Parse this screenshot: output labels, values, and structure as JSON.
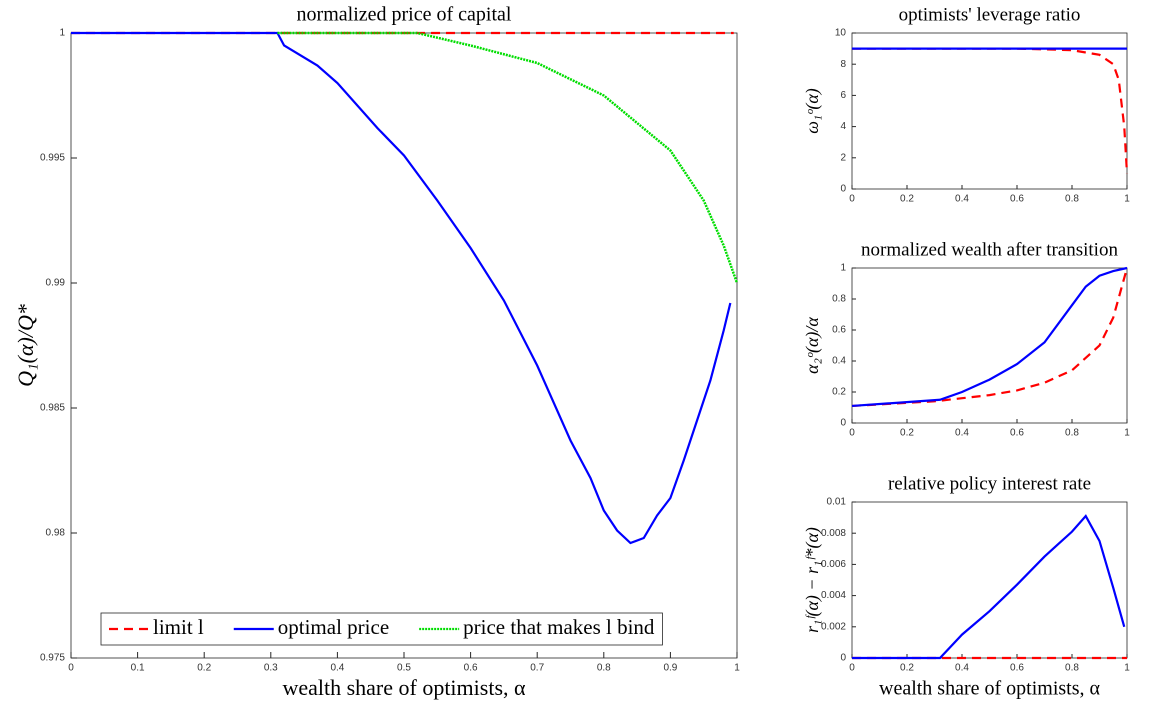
{
  "chart_data": [
    {
      "type": "line",
      "title": "normalized price of capital",
      "xlabel": "wealth share of optimists, α",
      "ylabel": "Q₁(α)/Q*",
      "xlim": [
        0,
        1
      ],
      "ylim": [
        0.975,
        1
      ],
      "xticks": [
        0,
        0.1,
        0.2,
        0.3,
        0.4,
        0.5,
        0.6,
        0.7,
        0.8,
        0.9,
        1
      ],
      "yticks": [
        0.975,
        0.98,
        0.985,
        0.99,
        0.995,
        1
      ],
      "legend": "lower center",
      "series": [
        {
          "name": "limit l",
          "color": "#ff0000",
          "style": "dashed",
          "x": [
            0,
            0.995
          ],
          "values": [
            1,
            1
          ]
        },
        {
          "name": "optimal price",
          "color": "#0000ff",
          "style": "solid",
          "x": [
            0,
            0.31,
            0.32,
            0.37,
            0.4,
            0.46,
            0.5,
            0.55,
            0.6,
            0.65,
            0.7,
            0.75,
            0.78,
            0.8,
            0.82,
            0.84,
            0.86,
            0.88,
            0.9,
            0.92,
            0.94,
            0.96,
            0.98,
            0.99
          ],
          "values": [
            1,
            1,
            0.9995,
            0.9987,
            0.998,
            0.9962,
            0.9951,
            0.9933,
            0.9914,
            0.9893,
            0.9867,
            0.9837,
            0.9822,
            0.9809,
            0.9801,
            0.9796,
            0.9798,
            0.9807,
            0.9814,
            0.9829,
            0.9845,
            0.9861,
            0.9881,
            0.9892
          ]
        },
        {
          "name": "price that makes l bind",
          "color": "#00dd00",
          "style": "dotted",
          "x": [
            0.31,
            0.4,
            0.52,
            0.6,
            0.7,
            0.8,
            0.9,
            0.95,
            0.98,
            1
          ],
          "values": [
            1,
            1,
            1,
            0.9995,
            0.9988,
            0.9975,
            0.9953,
            0.9933,
            0.9915,
            0.99
          ]
        }
      ]
    },
    {
      "type": "line",
      "title": "optimists' leverage ratio",
      "ylabel": "ω₁ᵒ(α)",
      "xlim": [
        0,
        1
      ],
      "ylim": [
        0,
        10
      ],
      "xticks": [
        0,
        0.2,
        0.4,
        0.6,
        0.8,
        1
      ],
      "yticks": [
        0,
        2,
        4,
        6,
        8,
        10
      ],
      "series": [
        {
          "color": "#ff0000",
          "style": "dashed",
          "x": [
            0,
            0.6,
            0.8,
            0.9,
            0.95,
            0.97,
            0.99,
            1
          ],
          "values": [
            9,
            9,
            8.9,
            8.6,
            8,
            7,
            4,
            1
          ]
        },
        {
          "color": "#0000ff",
          "style": "solid",
          "x": [
            0,
            1
          ],
          "values": [
            9,
            9
          ]
        }
      ]
    },
    {
      "type": "line",
      "title": "normalized wealth after transition",
      "ylabel": "α₂ᵒ(α)/α",
      "xlim": [
        0,
        1
      ],
      "ylim": [
        0,
        1
      ],
      "xticks": [
        0,
        0.2,
        0.4,
        0.6,
        0.8,
        1
      ],
      "yticks": [
        0,
        0.2,
        0.4,
        0.6,
        0.8,
        1
      ],
      "series": [
        {
          "color": "#ff0000",
          "style": "dashed",
          "x": [
            0,
            0.3,
            0.4,
            0.5,
            0.6,
            0.7,
            0.8,
            0.9,
            0.95,
            1
          ],
          "values": [
            0.11,
            0.14,
            0.16,
            0.18,
            0.21,
            0.26,
            0.34,
            0.5,
            0.68,
            1
          ]
        },
        {
          "color": "#0000ff",
          "style": "solid",
          "x": [
            0,
            0.32,
            0.4,
            0.5,
            0.6,
            0.7,
            0.8,
            0.85,
            0.9,
            0.95,
            1
          ],
          "values": [
            0.11,
            0.15,
            0.2,
            0.28,
            0.38,
            0.52,
            0.76,
            0.88,
            0.95,
            0.98,
            1
          ]
        }
      ]
    },
    {
      "type": "line",
      "title": "relative policy interest rate",
      "xlabel": "wealth share of optimists, α",
      "ylabel": "r₁ᶠ(α) − r₁ᶠ*(α)",
      "xlim": [
        0,
        1
      ],
      "ylim": [
        0,
        0.01
      ],
      "xticks": [
        0,
        0.2,
        0.4,
        0.6,
        0.8,
        1
      ],
      "yticks": [
        0,
        0.002,
        0.004,
        0.006,
        0.008,
        0.01
      ],
      "series": [
        {
          "color": "#ff0000",
          "style": "dashed",
          "x": [
            0,
            1
          ],
          "values": [
            0,
            0
          ]
        },
        {
          "color": "#0000ff",
          "style": "solid",
          "x": [
            0,
            0.32,
            0.4,
            0.5,
            0.6,
            0.7,
            0.75,
            0.8,
            0.85,
            0.9,
            0.95,
            0.99
          ],
          "values": [
            0,
            0,
            0.0015,
            0.003,
            0.0047,
            0.0065,
            0.0073,
            0.0081,
            0.0091,
            0.0075,
            0.0045,
            0.002
          ]
        }
      ]
    }
  ]
}
